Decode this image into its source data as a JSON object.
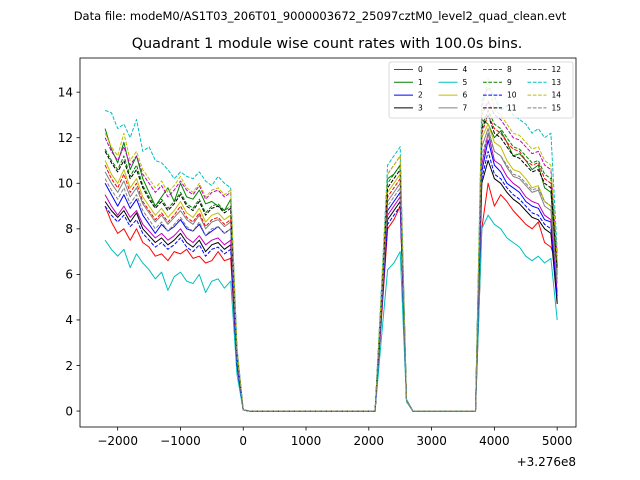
{
  "chart_data": {
    "type": "line",
    "suptitle": "Data file: modeM0/AS1T03_206T01_9000003672_25097cztM0_level2_quad_clean.evt",
    "title": "Quadrant 1 module wise count rates with 100.0s bins.",
    "xlabel": "",
    "ylabel": "",
    "x_offset_label": "+3.276e8",
    "xlim": [
      -2600,
      5300
    ],
    "ylim": [
      -0.7,
      15.5
    ],
    "xticks": [
      -2000,
      -1000,
      0,
      1000,
      2000,
      3000,
      4000,
      5000
    ],
    "xtick_labels": [
      "−2000",
      "−1000",
      "0",
      "1000",
      "2000",
      "3000",
      "4000",
      "5000"
    ],
    "yticks": [
      0,
      2,
      4,
      6,
      8,
      10,
      12,
      14
    ],
    "ytick_labels": [
      "0",
      "2",
      "4",
      "6",
      "8",
      "10",
      "12",
      "14"
    ],
    "legend_position": "upper right",
    "legend_columns": 4,
    "x": [
      -2200,
      -2100,
      -2000,
      -1900,
      -1800,
      -1700,
      -1600,
      -1500,
      -1400,
      -1300,
      -1200,
      -1100,
      -1000,
      -900,
      -800,
      -700,
      -600,
      -500,
      -400,
      -300,
      -200,
      -100,
      0,
      100,
      2100,
      2200,
      2300,
      2400,
      2500,
      2600,
      2700,
      3700,
      3800,
      3900,
      4000,
      4100,
      4200,
      4300,
      4400,
      4500,
      4600,
      4700,
      4800,
      4900,
      5000
    ],
    "series": [
      {
        "name": "0",
        "color": "#ff0000",
        "dash": "solid",
        "values": [
          9.0,
          8.3,
          7.8,
          8.0,
          7.5,
          8.0,
          7.4,
          7.2,
          6.8,
          6.9,
          6.6,
          7.0,
          6.9,
          7.1,
          6.7,
          6.8,
          6.5,
          6.6,
          7.0,
          6.6,
          6.7,
          2.0,
          0.05,
          0.0,
          0.0,
          4.0,
          8.0,
          8.4,
          9.0,
          0.5,
          0.0,
          0.0,
          8.0,
          10.0,
          9.0,
          9.5,
          9.2,
          8.8,
          8.5,
          8.2,
          8.0,
          8.3,
          7.4,
          7.2,
          6.4
        ]
      },
      {
        "name": "1",
        "color": "#008000",
        "dash": "solid",
        "values": [
          12.4,
          11.5,
          10.9,
          11.8,
          10.6,
          11.2,
          10.2,
          9.6,
          9.0,
          9.4,
          9.8,
          9.2,
          10.0,
          9.4,
          9.3,
          9.7,
          9.1,
          9.2,
          9.0,
          8.8,
          9.3,
          2.5,
          0.05,
          0.0,
          0.0,
          5.0,
          10.2,
          10.4,
          10.8,
          0.5,
          0.0,
          0.0,
          12.8,
          12.6,
          12.0,
          12.3,
          11.8,
          11.2,
          11.3,
          11.0,
          10.6,
          10.8,
          9.8,
          9.6,
          6.0
        ]
      },
      {
        "name": "2",
        "color": "#0000ff",
        "dash": "solid",
        "values": [
          10.0,
          9.5,
          9.0,
          9.5,
          8.9,
          9.3,
          8.6,
          8.2,
          7.8,
          8.2,
          7.9,
          8.1,
          8.4,
          8.0,
          7.9,
          8.2,
          7.7,
          7.9,
          8.1,
          7.8,
          8.0,
          2.2,
          0.05,
          0.0,
          0.0,
          4.5,
          8.8,
          9.2,
          9.6,
          0.5,
          0.0,
          0.0,
          10.5,
          11.9,
          10.8,
          10.5,
          10.0,
          9.8,
          9.6,
          9.2,
          9.0,
          8.9,
          8.4,
          8.3,
          4.8
        ]
      },
      {
        "name": "3",
        "color": "#000000",
        "dash": "solid",
        "values": [
          9.2,
          8.8,
          8.5,
          8.8,
          8.3,
          8.7,
          8.0,
          7.7,
          7.4,
          7.6,
          7.3,
          7.5,
          7.8,
          7.4,
          7.2,
          7.5,
          7.0,
          7.3,
          7.4,
          7.1,
          7.3,
          2.1,
          0.05,
          0.0,
          0.0,
          4.3,
          8.4,
          8.8,
          9.2,
          0.5,
          0.0,
          0.0,
          10.0,
          11.0,
          10.2,
          10.0,
          9.6,
          9.3,
          9.1,
          8.8,
          8.5,
          8.4,
          8.0,
          7.8,
          4.7
        ]
      },
      {
        "name": "4",
        "color": "#bf00bf",
        "dash": "solid",
        "values": [
          9.5,
          9.0,
          8.6,
          9.0,
          8.5,
          8.8,
          8.2,
          7.9,
          7.6,
          7.8,
          7.5,
          7.7,
          8.0,
          7.6,
          7.4,
          7.7,
          7.3,
          7.5,
          7.6,
          7.3,
          7.5,
          2.2,
          0.05,
          0.0,
          0.0,
          4.4,
          8.6,
          9.0,
          9.4,
          0.5,
          0.0,
          0.0,
          10.8,
          12.2,
          11.0,
          10.8,
          10.3,
          10.0,
          9.8,
          9.4,
          9.2,
          9.1,
          8.6,
          8.4,
          5.2
        ]
      },
      {
        "name": "5",
        "color": "#00bfbf",
        "dash": "solid",
        "values": [
          7.5,
          7.1,
          6.8,
          7.1,
          6.3,
          6.9,
          6.5,
          6.2,
          5.8,
          6.1,
          5.3,
          5.9,
          6.1,
          5.7,
          5.6,
          6.0,
          5.2,
          5.7,
          5.8,
          5.4,
          5.7,
          1.6,
          0.05,
          0.0,
          0.0,
          3.2,
          6.2,
          6.5,
          7.0,
          0.4,
          0.0,
          0.0,
          8.0,
          8.6,
          8.2,
          8.0,
          7.6,
          7.4,
          7.2,
          6.8,
          6.6,
          6.8,
          6.5,
          6.7,
          4.0
        ]
      },
      {
        "name": "6",
        "color": "#bfbf00",
        "dash": "solid",
        "values": [
          11.0,
          10.4,
          10.0,
          10.6,
          9.8,
          10.2,
          9.4,
          9.0,
          8.6,
          8.9,
          8.5,
          8.8,
          9.2,
          8.7,
          8.5,
          8.9,
          8.3,
          8.6,
          8.7,
          8.4,
          8.6,
          2.4,
          0.05,
          0.0,
          0.0,
          4.8,
          9.6,
          10.0,
          10.4,
          0.5,
          0.0,
          0.0,
          12.0,
          12.6,
          11.8,
          11.6,
          11.0,
          10.6,
          10.5,
          10.2,
          9.8,
          9.9,
          9.2,
          9.0,
          5.8
        ]
      },
      {
        "name": "7",
        "color": "#808080",
        "dash": "solid",
        "values": [
          10.5,
          10.0,
          9.6,
          10.1,
          9.4,
          9.8,
          9.1,
          8.7,
          8.3,
          8.6,
          8.2,
          8.5,
          8.8,
          8.4,
          8.2,
          8.6,
          8.0,
          8.3,
          8.4,
          8.1,
          8.3,
          2.3,
          0.05,
          0.0,
          0.0,
          4.6,
          9.2,
          9.6,
          10.0,
          0.5,
          0.0,
          0.0,
          11.6,
          12.4,
          11.4,
          11.2,
          10.7,
          10.3,
          10.2,
          9.9,
          9.6,
          9.7,
          9.0,
          8.8,
          5.6
        ]
      },
      {
        "name": "8",
        "color": "#ff0000",
        "dash": "dashed",
        "values": [
          10.8,
          10.2,
          9.8,
          10.4,
          9.6,
          10.0,
          9.2,
          8.8,
          8.4,
          8.7,
          8.3,
          8.6,
          9.0,
          8.5,
          8.3,
          8.7,
          8.1,
          8.4,
          8.5,
          8.2,
          8.4,
          2.4,
          0.05,
          0.0,
          0.0,
          4.7,
          9.4,
          9.8,
          10.2,
          0.5,
          0.0,
          0.0,
          12.2,
          13.0,
          12.4,
          12.2,
          11.8,
          11.5,
          11.4,
          11.0,
          10.8,
          10.9,
          10.2,
          10.0,
          6.4
        ]
      },
      {
        "name": "9",
        "color": "#008000",
        "dash": "dashed",
        "values": [
          11.5,
          11.0,
          10.6,
          11.2,
          10.3,
          10.8,
          9.9,
          9.4,
          9.0,
          9.3,
          8.9,
          9.2,
          9.6,
          9.1,
          8.9,
          9.3,
          8.7,
          9.0,
          9.1,
          8.8,
          9.0,
          2.6,
          0.05,
          0.0,
          0.0,
          5.0,
          10.0,
          10.4,
          10.8,
          0.5,
          0.0,
          0.0,
          12.5,
          13.2,
          12.6,
          12.4,
          12.0,
          11.6,
          11.5,
          11.2,
          10.9,
          11.0,
          10.4,
          10.2,
          6.4
        ]
      },
      {
        "name": "10",
        "color": "#0000ff",
        "dash": "dashed",
        "values": [
          9.0,
          8.6,
          8.3,
          8.6,
          8.1,
          8.4,
          7.8,
          7.5,
          7.2,
          7.4,
          7.1,
          7.3,
          7.6,
          7.2,
          7.0,
          7.3,
          6.8,
          7.1,
          7.2,
          6.9,
          7.1,
          2.0,
          0.05,
          0.0,
          0.0,
          4.2,
          8.2,
          8.6,
          9.0,
          0.5,
          0.0,
          0.0,
          10.2,
          11.4,
          10.4,
          10.2,
          9.8,
          9.5,
          9.3,
          9.0,
          8.7,
          8.6,
          8.2,
          8.0,
          5.0
        ]
      },
      {
        "name": "11",
        "color": "#000000",
        "dash": "dashed",
        "values": [
          11.4,
          10.9,
          10.5,
          11.0,
          10.2,
          10.6,
          9.8,
          9.3,
          8.9,
          9.2,
          8.8,
          9.1,
          9.5,
          9.0,
          8.8,
          9.2,
          8.6,
          8.9,
          9.0,
          8.7,
          8.9,
          2.5,
          0.05,
          0.0,
          0.0,
          4.9,
          9.8,
          10.2,
          10.6,
          0.5,
          0.0,
          0.0,
          12.4,
          13.0,
          12.2,
          12.0,
          11.6,
          11.2,
          11.1,
          10.8,
          10.5,
          10.6,
          10.0,
          9.8,
          6.2
        ]
      },
      {
        "name": "12",
        "color": "#bf00bf",
        "dash": "dashed",
        "values": [
          12.0,
          11.4,
          11.0,
          11.6,
          10.8,
          11.2,
          10.4,
          10.0,
          9.6,
          9.9,
          9.4,
          9.7,
          10.1,
          9.7,
          9.5,
          9.9,
          9.3,
          9.6,
          9.7,
          9.4,
          9.6,
          2.7,
          0.05,
          0.0,
          0.0,
          5.2,
          10.4,
          10.8,
          11.2,
          0.5,
          0.0,
          0.0,
          13.0,
          13.6,
          13.0,
          12.8,
          12.4,
          12.0,
          11.9,
          11.6,
          11.3,
          11.4,
          10.8,
          10.6,
          6.8
        ]
      },
      {
        "name": "13",
        "color": "#00bfbf",
        "dash": "dashed",
        "values": [
          13.2,
          13.1,
          12.4,
          12.6,
          12.0,
          12.8,
          11.4,
          11.6,
          11.0,
          10.9,
          10.6,
          10.2,
          10.5,
          10.3,
          10.2,
          10.5,
          10.1,
          9.9,
          10.3,
          10.0,
          9.8,
          2.8,
          0.05,
          0.0,
          0.0,
          5.4,
          10.8,
          11.2,
          11.6,
          0.5,
          0.0,
          0.0,
          13.6,
          14.2,
          13.8,
          13.2,
          13.4,
          13.0,
          12.8,
          12.6,
          12.2,
          12.4,
          12.0,
          12.2,
          7.0
        ]
      },
      {
        "name": "14",
        "color": "#bfbf00",
        "dash": "dashed",
        "values": [
          12.2,
          11.6,
          11.2,
          12.2,
          11.0,
          11.4,
          10.6,
          10.2,
          9.8,
          10.1,
          9.6,
          9.9,
          10.3,
          9.8,
          9.6,
          10.0,
          9.4,
          9.7,
          9.8,
          9.5,
          9.7,
          2.7,
          0.05,
          0.0,
          0.0,
          5.2,
          10.4,
          10.8,
          11.2,
          0.5,
          0.0,
          0.0,
          13.2,
          14.6,
          13.2,
          13.0,
          12.6,
          12.2,
          12.1,
          11.8,
          11.5,
          11.6,
          11.0,
          10.8,
          6.6
        ]
      },
      {
        "name": "15",
        "color": "#808080",
        "dash": "dashed",
        "values": [
          10.2,
          9.7,
          9.3,
          9.8,
          9.1,
          9.5,
          8.8,
          8.4,
          8.0,
          8.3,
          7.9,
          8.2,
          8.5,
          8.1,
          7.9,
          8.3,
          7.7,
          8.0,
          8.1,
          7.8,
          8.0,
          2.3,
          0.05,
          0.0,
          0.0,
          4.5,
          9.0,
          9.4,
          9.8,
          0.5,
          0.0,
          0.0,
          11.2,
          12.2,
          11.4,
          11.2,
          10.8,
          10.4,
          10.3,
          10.0,
          9.7,
          9.8,
          9.2,
          9.0,
          5.8
        ]
      }
    ]
  }
}
